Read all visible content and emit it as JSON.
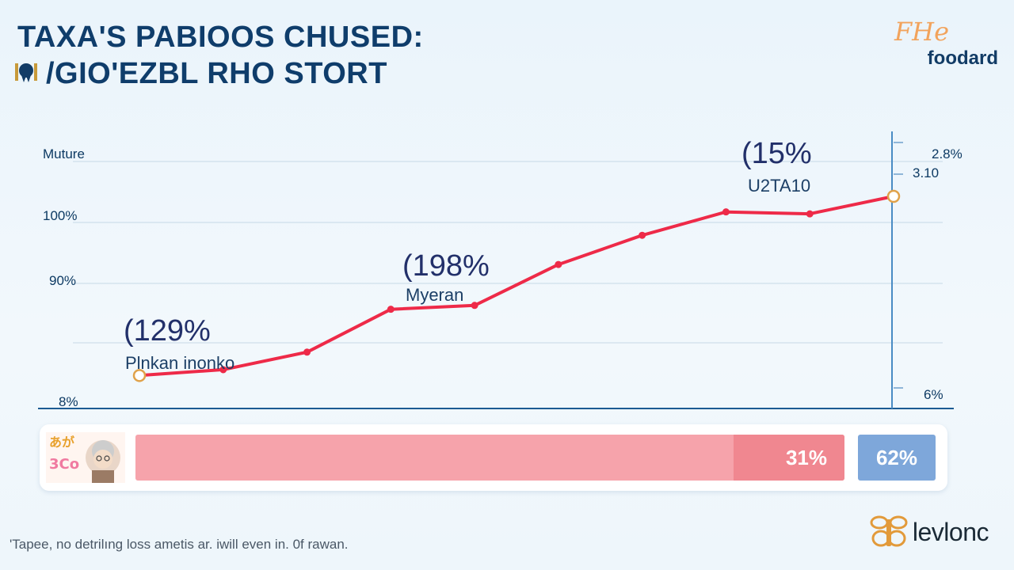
{
  "header": {
    "title_line1": "TAXA'S PABIOOS CHUSED:",
    "title_line2": "/GIO'EZBL RHO STORT",
    "title_icon": "mascot-icon"
  },
  "brand_top": {
    "script": "FHe",
    "name": "foodard"
  },
  "chart_data": {
    "type": "line",
    "title": "TAXA'S PABIOOS CHUSED: /GIO'EZBL RHO STORT",
    "y_labels_left": [
      "Muture",
      "100%",
      "90%",
      "8%"
    ],
    "y_labels_right": [
      "2.8%",
      "3.10",
      "6%"
    ],
    "grid": true,
    "series": [
      {
        "color": "#ee2a48",
        "points": [
          {
            "x": 1,
            "y": 8
          },
          {
            "x": 2,
            "y": 11
          },
          {
            "x": 3,
            "y": 20
          },
          {
            "x": 4,
            "y": 42
          },
          {
            "x": 5,
            "y": 44
          },
          {
            "x": 6,
            "y": 65
          },
          {
            "x": 7,
            "y": 80
          },
          {
            "x": 8,
            "y": 92
          },
          {
            "x": 9,
            "y": 91
          },
          {
            "x": 10,
            "y": 100
          }
        ]
      }
    ],
    "x_range": [
      0,
      11
    ],
    "y_range": [
      0,
      100
    ],
    "annotations": [
      {
        "value": "(129%",
        "label": "Plnkan inonko",
        "at_point": 0
      },
      {
        "value": "(198%",
        "label": "Myeran",
        "at_point": 3
      },
      {
        "value": "(15%",
        "label": "U2TA10",
        "at_point": 7
      }
    ]
  },
  "bottom_bar": {
    "main_value": "31%",
    "side_value": "62%",
    "main_color": "#f6a3ab",
    "main_accent": "#f08790",
    "side_color": "#7ea7da"
  },
  "footnote": "'Tapee, no detrilıng loss ametis ar. iwill even in. 0f rawan.",
  "brand_bottom": {
    "name": "levlonc",
    "icon": "bee-logo-icon"
  }
}
